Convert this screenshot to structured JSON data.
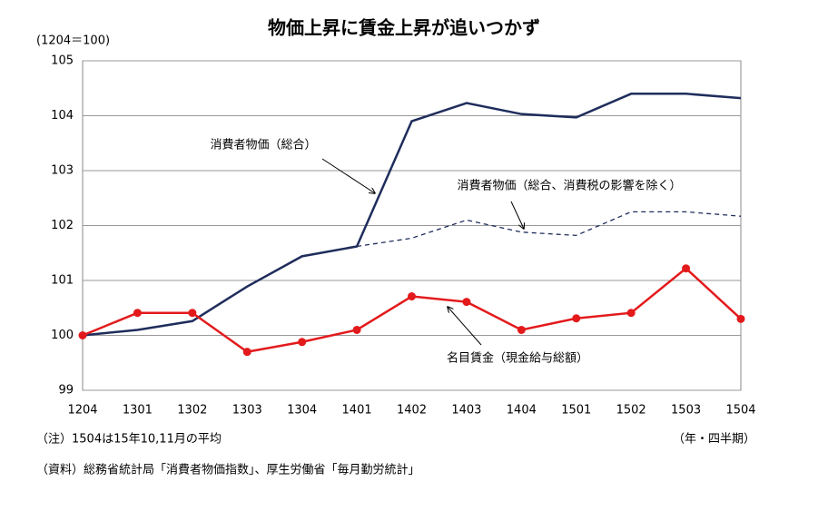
{
  "chart_data": {
    "type": "line",
    "title": "物価上昇に賃金上昇が追いつかず",
    "unit_label": "(1204＝100)",
    "x_axis_label": "（年・四半期）",
    "notes": [
      "（注）1504は15年10,11月の平均",
      "（資料）総務省統計局「消費者物価指数」、厚生労働省「毎月勤労統計」"
    ],
    "categories": [
      "1204",
      "1301",
      "1302",
      "1303",
      "1304",
      "1401",
      "1402",
      "1403",
      "1404",
      "1501",
      "1502",
      "1503",
      "1504"
    ],
    "series": [
      {
        "name": "消費者物価（総合）",
        "color": "#1f2d5c",
        "line_style": "solid",
        "marker": false,
        "values": [
          100,
          100.1,
          100.26,
          100.89,
          101.44,
          101.62,
          103.9,
          104.23,
          104.03,
          103.97,
          104.4,
          104.4,
          104.32
        ]
      },
      {
        "name": "消費者物価（総合、消費税の影響を除く）",
        "color": "#1f2d5c",
        "line_style": "dashed",
        "marker": false,
        "values": [
          null,
          null,
          null,
          null,
          null,
          101.62,
          101.77,
          102.1,
          101.88,
          101.82,
          102.25,
          102.25,
          102.17
        ]
      },
      {
        "name": "名目賃金（現金給与総額）",
        "color": "#e31a1c",
        "line_style": "solid",
        "marker": true,
        "values": [
          100,
          100.41,
          100.41,
          99.7,
          99.88,
          100.1,
          100.71,
          100.61,
          100.1,
          100.31,
          100.41,
          101.22,
          100.3
        ]
      }
    ],
    "ylim": [
      99,
      105
    ],
    "yticks": [
      99,
      100,
      101,
      102,
      103,
      104,
      105
    ],
    "grid": true
  }
}
